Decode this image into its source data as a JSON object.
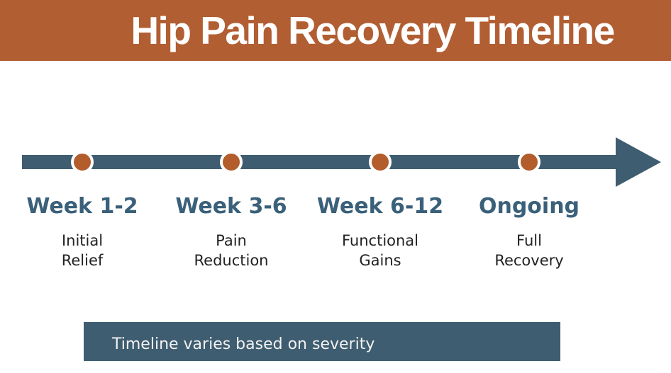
{
  "header": {
    "title": "Hip Pain Recovery Timeline"
  },
  "timeline": {
    "milestones": [
      {
        "week": "Week 1-2",
        "phase_line1": "Initial",
        "phase_line2": "Relief"
      },
      {
        "week": "Week 3-6",
        "phase_line1": "Pain",
        "phase_line2": "Reduction"
      },
      {
        "week": "Week 6-12",
        "phase_line1": "Functional",
        "phase_line2": "Gains"
      },
      {
        "week": "Ongoing",
        "phase_line1": "Full",
        "phase_line2": "Recovery"
      }
    ]
  },
  "footer": {
    "note": "Timeline varies based on severity"
  },
  "colors": {
    "accent_orange": "#b25e33",
    "dot_orange": "#b35c2c",
    "teal": "#3f5d70",
    "week_label": "#3a607a",
    "body_text": "#222222",
    "on_dark_text": "#f2f2f2",
    "background": "#ffffff"
  }
}
